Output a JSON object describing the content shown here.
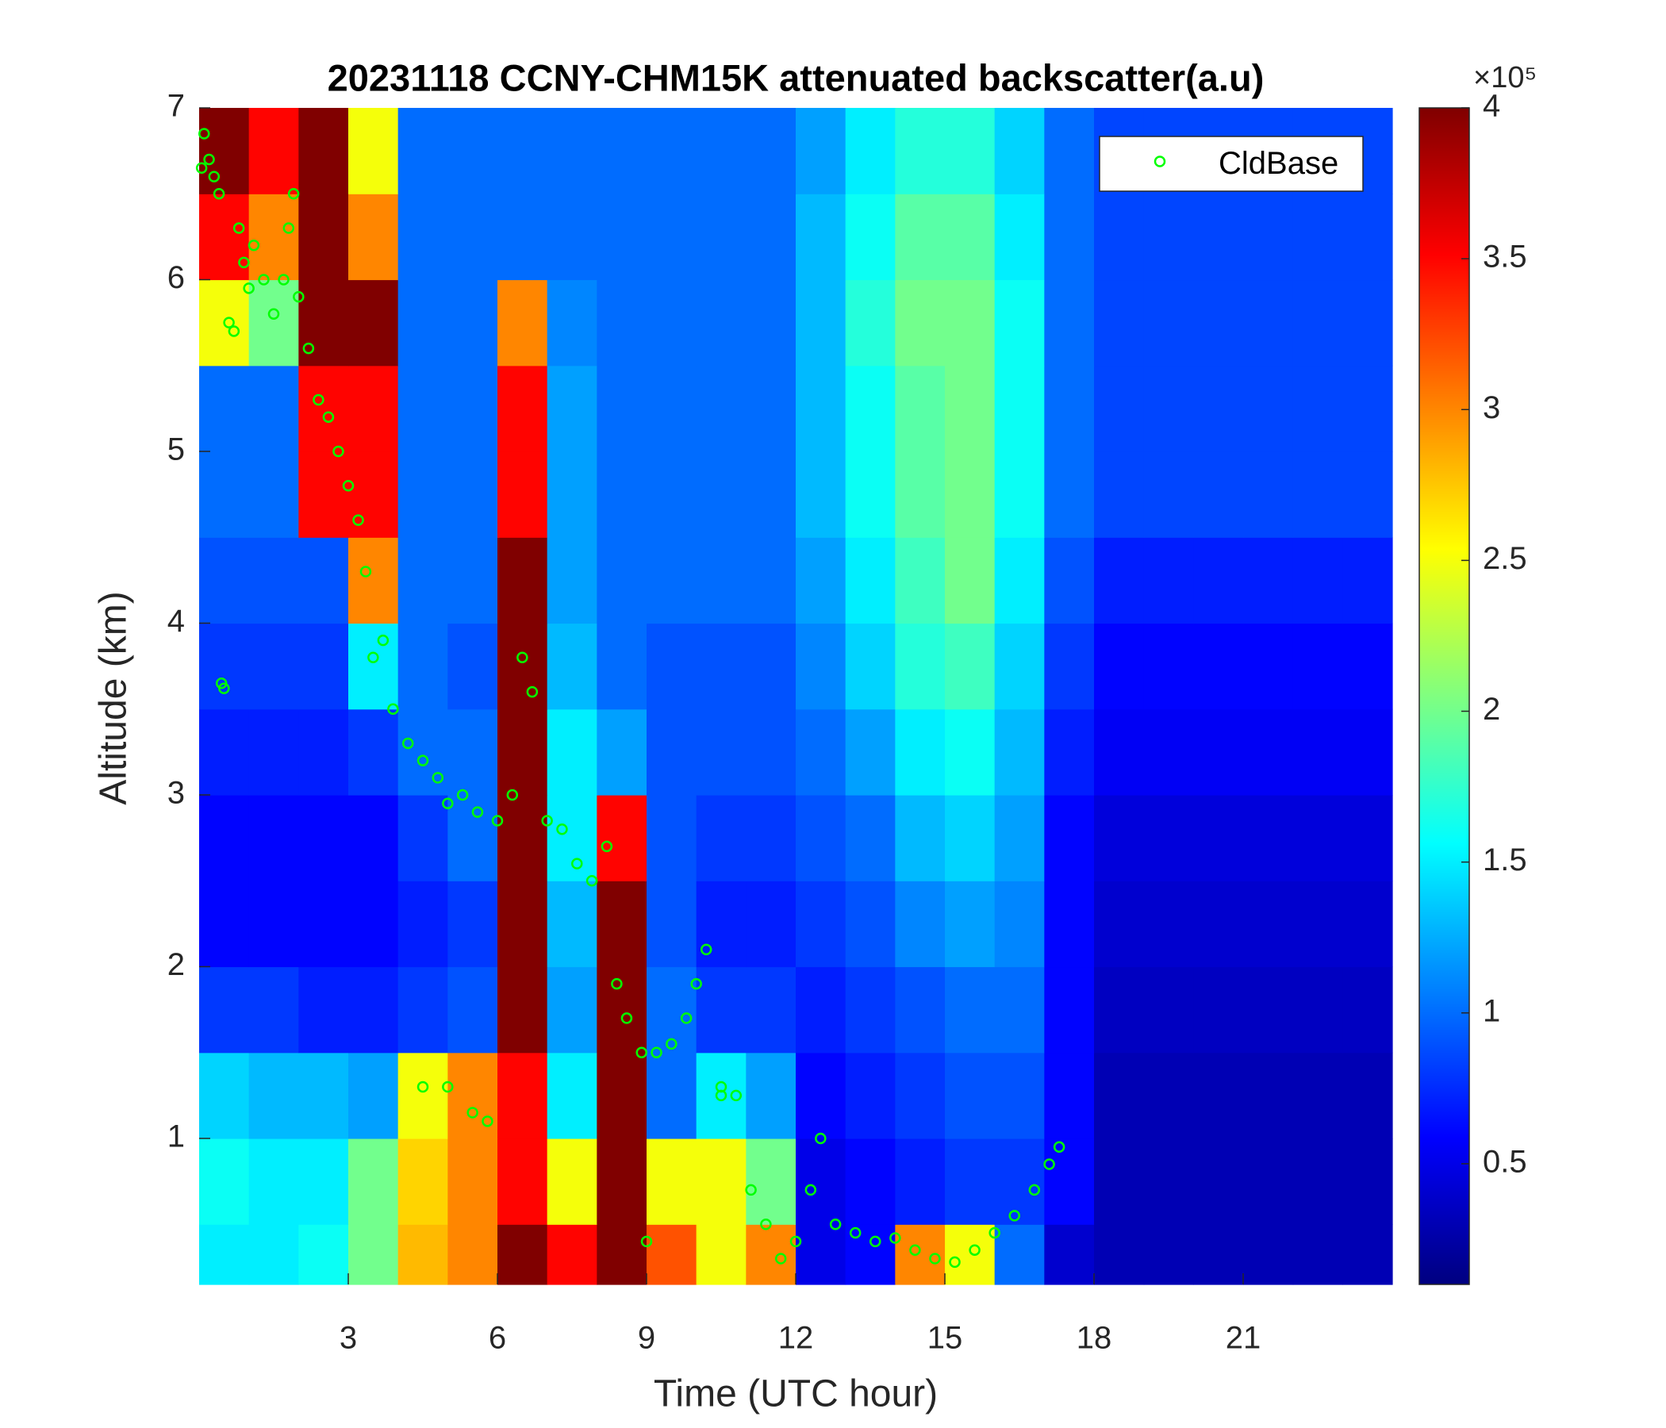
{
  "chart_data": {
    "type": "heatmap",
    "title": "20231118 CCNY-CHM15K attenuated backscatter(a.u)",
    "xlabel": "Time (UTC hour)",
    "ylabel": "Altitude (km)",
    "xlim": [
      0,
      24
    ],
    "ylim": [
      0.15,
      7
    ],
    "xticks": [
      3,
      6,
      9,
      12,
      15,
      18,
      21
    ],
    "yticks": [
      1,
      2,
      3,
      4,
      5,
      6,
      7
    ],
    "colormap": "jet",
    "clim": [
      0.1,
      4
    ],
    "colorbar_ticks": [
      0.5,
      1,
      1.5,
      2,
      2.5,
      3,
      3.5,
      4
    ],
    "colorbar_multiplier": "×10⁵",
    "x_edges": [
      0,
      1,
      2,
      3,
      4,
      5,
      6,
      7,
      8,
      9,
      10,
      11,
      12,
      13,
      14,
      15,
      16,
      17,
      18,
      19,
      20,
      21,
      22,
      23,
      24
    ],
    "y_edges": [
      0.15,
      0.5,
      1,
      1.5,
      2,
      2.5,
      3,
      3.5,
      4,
      4.5,
      5,
      5.5,
      6,
      6.5,
      7
    ],
    "z": [
      [
        1.5,
        1.5,
        1.6,
        2.0,
        2.8,
        3.0,
        4,
        3.5,
        4,
        3.2,
        2.5,
        3.0,
        0.5,
        0.6,
        3.0,
        2.5,
        1.0,
        0.4,
        0.3,
        0.3,
        0.3,
        0.3,
        0.3,
        0.3
      ],
      [
        1.6,
        1.5,
        1.5,
        2.0,
        2.7,
        3.0,
        3.5,
        2.5,
        4,
        2.5,
        2.5,
        2.0,
        0.5,
        0.6,
        0.7,
        0.8,
        0.8,
        0.6,
        0.3,
        0.3,
        0.3,
        0.3,
        0.3,
        0.3
      ],
      [
        1.4,
        1.3,
        1.3,
        1.2,
        2.5,
        3.0,
        3.5,
        1.5,
        4,
        1.0,
        1.5,
        1.2,
        0.6,
        0.7,
        0.8,
        0.9,
        0.9,
        0.6,
        0.3,
        0.3,
        0.3,
        0.3,
        0.3,
        0.3
      ],
      [
        0.8,
        0.8,
        0.7,
        0.7,
        0.8,
        0.9,
        4,
        1.2,
        4,
        1.0,
        0.8,
        0.8,
        0.7,
        0.8,
        0.9,
        1.0,
        1.0,
        0.6,
        0.35,
        0.35,
        0.35,
        0.35,
        0.35,
        0.35
      ],
      [
        0.6,
        0.6,
        0.6,
        0.6,
        0.7,
        0.8,
        4,
        1.3,
        4,
        0.9,
        0.7,
        0.7,
        0.8,
        0.9,
        1.1,
        1.2,
        1.1,
        0.6,
        0.4,
        0.4,
        0.4,
        0.4,
        0.4,
        0.4
      ],
      [
        0.6,
        0.6,
        0.6,
        0.6,
        0.8,
        1.0,
        4,
        1.5,
        3.5,
        0.9,
        0.8,
        0.8,
        0.9,
        1.0,
        1.3,
        1.4,
        1.2,
        0.6,
        0.45,
        0.45,
        0.45,
        0.45,
        0.45,
        0.45
      ],
      [
        0.7,
        0.7,
        0.7,
        0.8,
        1.0,
        1.0,
        4,
        1.5,
        1.2,
        0.9,
        0.9,
        0.9,
        1.0,
        1.2,
        1.5,
        1.6,
        1.3,
        0.7,
        0.55,
        0.55,
        0.55,
        0.55,
        0.55,
        0.55
      ],
      [
        0.8,
        0.8,
        0.8,
        1.5,
        1.0,
        0.9,
        4,
        1.3,
        1.0,
        0.9,
        0.9,
        0.9,
        1.1,
        1.4,
        1.7,
        1.8,
        1.4,
        0.8,
        0.6,
        0.6,
        0.6,
        0.6,
        0.6,
        0.6
      ],
      [
        0.9,
        0.9,
        0.9,
        3.0,
        1.0,
        1.0,
        4,
        1.2,
        1.0,
        1.0,
        1.0,
        1.0,
        1.2,
        1.5,
        1.8,
        2.0,
        1.5,
        0.9,
        0.7,
        0.7,
        0.7,
        0.7,
        0.7,
        0.7
      ],
      [
        1.0,
        1.0,
        3.5,
        3.5,
        1.0,
        1.0,
        3.5,
        1.2,
        1.0,
        1.0,
        1.0,
        1.0,
        1.3,
        1.6,
        1.9,
        2.0,
        1.6,
        1.0,
        0.85,
        0.85,
        0.85,
        0.85,
        0.85,
        0.85
      ],
      [
        1.0,
        1.0,
        3.5,
        3.5,
        1.0,
        1.0,
        3.5,
        1.2,
        1.0,
        1.0,
        1.0,
        1.0,
        1.3,
        1.6,
        1.9,
        2.0,
        1.6,
        1.0,
        0.85,
        0.85,
        0.85,
        0.85,
        0.85,
        0.85
      ],
      [
        2.5,
        2.0,
        4,
        4,
        1.0,
        1.0,
        3.0,
        1.1,
        1.0,
        1,
        1,
        1,
        1.3,
        1.7,
        2.0,
        2.0,
        1.6,
        1.0,
        0.85,
        0.85,
        0.85,
        0.85,
        0.85,
        0.85
      ],
      [
        3.5,
        3,
        4,
        3.0,
        1,
        1,
        1,
        1,
        1,
        1,
        1,
        1,
        1.3,
        1.6,
        1.9,
        1.9,
        1.5,
        1.0,
        0.85,
        0.85,
        0.85,
        0.85,
        0.85,
        0.85
      ],
      [
        4,
        3.5,
        4,
        2.5,
        1,
        1,
        1,
        1,
        1,
        1,
        1,
        1,
        1.2,
        1.5,
        1.7,
        1.7,
        1.4,
        1.0,
        0.85,
        0.85,
        0.85,
        0.85,
        0.85,
        0.85
      ]
    ],
    "overlay": {
      "type": "scatter",
      "name": "CldBase",
      "color": "#00ff00",
      "x": [
        0.05,
        0.1,
        0.2,
        0.3,
        0.4,
        0.45,
        0.5,
        0.6,
        0.7,
        0.8,
        0.9,
        1.0,
        1.1,
        1.3,
        1.5,
        1.7,
        1.8,
        1.9,
        2.0,
        2.2,
        2.4,
        2.6,
        2.8,
        3.0,
        3.2,
        3.35,
        3.5,
        3.7,
        3.9,
        4.2,
        4.5,
        4.8,
        5.0,
        5.3,
        5.6,
        6.0,
        6.3,
        6.5,
        6.7,
        7.0,
        7.3,
        7.6,
        7.9,
        8.2,
        8.4,
        8.6,
        8.9,
        9.2,
        9.5,
        9.8,
        10.0,
        10.2,
        10.5,
        10.8,
        11.1,
        11.4,
        11.7,
        12.0,
        12.3,
        12.5,
        12.8,
        13.2,
        13.6,
        14.0,
        14.4,
        14.8,
        15.2,
        15.6,
        16.0,
        16.4,
        16.8,
        17.1,
        17.3,
        4.5,
        5.0,
        5.5,
        5.8,
        9.0,
        10.5
      ],
      "y": [
        6.65,
        6.85,
        6.7,
        6.6,
        6.5,
        3.65,
        3.62,
        5.75,
        5.7,
        6.3,
        6.1,
        5.95,
        6.2,
        6.0,
        5.8,
        6.0,
        6.3,
        6.5,
        5.9,
        5.6,
        5.3,
        5.2,
        5.0,
        4.8,
        4.6,
        4.3,
        3.8,
        3.9,
        3.5,
        3.3,
        3.2,
        3.1,
        2.95,
        3.0,
        2.9,
        2.85,
        3.0,
        3.8,
        3.6,
        2.85,
        2.8,
        2.6,
        2.5,
        2.7,
        1.9,
        1.7,
        1.5,
        1.5,
        1.55,
        1.7,
        1.9,
        2.1,
        1.3,
        1.25,
        0.7,
        0.5,
        0.3,
        0.4,
        0.7,
        1.0,
        0.5,
        0.45,
        0.4,
        0.42,
        0.35,
        0.3,
        0.28,
        0.35,
        0.45,
        0.55,
        0.7,
        0.85,
        0.95,
        1.3,
        1.3,
        1.15,
        1.1,
        0.4,
        1.25
      ]
    },
    "legend": "upper right"
  }
}
